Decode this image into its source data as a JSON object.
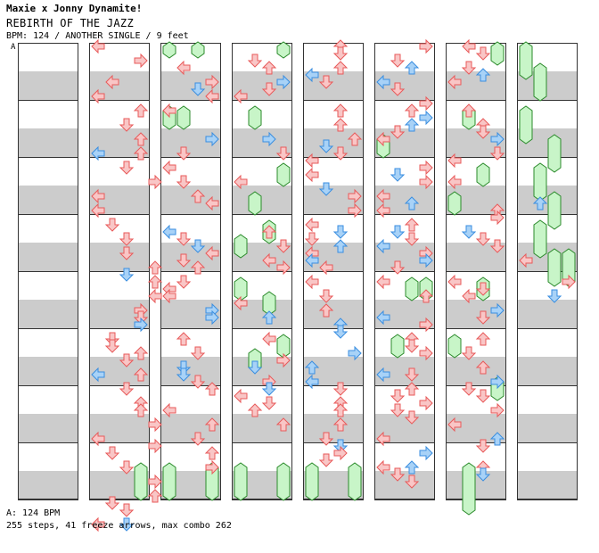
{
  "header": {
    "artist": "Maxie x Jonny Dynamite!",
    "title": "REBIRTH OF THE JAZZ",
    "info": "BPM: 124 / ANOTHER SINGLE / 9 feet",
    "segment_label": "A"
  },
  "footer": {
    "bpm_note": "A: 124 BPM",
    "stats": "255 steps, 41 freeze arrows, max combo 262"
  },
  "colors": {
    "stripe": "#cccccc",
    "border": "#333333",
    "red_fill": "#f9c6c6",
    "red_stroke": "#e85a5a",
    "blue_fill": "#a8d2f7",
    "blue_stroke": "#3a8ee0",
    "freeze_fill": "#c8f5c8",
    "freeze_stroke": "#2b8a2b"
  },
  "arrows": [
    [],
    [
      [
        0,
        0,
        "L",
        "red"
      ],
      [
        3,
        2,
        "R",
        "red"
      ],
      [
        1,
        5,
        "L",
        "red"
      ],
      [
        0,
        7,
        "L",
        "red"
      ],
      [
        3,
        9,
        "U",
        "red"
      ],
      [
        2,
        11,
        "D",
        "red"
      ],
      [
        3,
        13,
        "U",
        "red"
      ],
      [
        0,
        15,
        "L",
        "blue"
      ],
      [
        3,
        15,
        "U",
        "red"
      ],
      [
        2,
        17,
        "D",
        "red"
      ],
      [
        4,
        19,
        "R",
        "red"
      ],
      [
        0,
        21,
        "L",
        "red"
      ],
      [
        0,
        23,
        "L",
        "red"
      ],
      [
        1,
        25,
        "D",
        "red"
      ],
      [
        2,
        27,
        "D",
        "red"
      ],
      [
        2,
        29,
        "D",
        "red"
      ],
      [
        4,
        31,
        "U",
        "red"
      ],
      [
        2,
        32,
        "D",
        "blue"
      ],
      [
        4,
        33,
        "U",
        "red"
      ],
      [
        4,
        35,
        "L",
        "red"
      ],
      [
        3,
        37,
        "R",
        "red"
      ],
      [
        3,
        38,
        "D",
        "red"
      ],
      [
        3,
        39,
        "R",
        "blue"
      ],
      [
        1,
        41,
        "D",
        "red"
      ],
      [
        1,
        42,
        "D",
        "red"
      ],
      [
        3,
        43,
        "U",
        "red"
      ],
      [
        2,
        44,
        "D",
        "red"
      ],
      [
        0,
        46,
        "L",
        "blue"
      ],
      [
        3,
        46,
        "U",
        "red"
      ],
      [
        2,
        48,
        "D",
        "red"
      ],
      [
        3,
        50,
        "U",
        "red"
      ],
      [
        3,
        51,
        "U",
        "red"
      ],
      [
        4,
        53,
        "R",
        "red"
      ],
      [
        0,
        55,
        "L",
        "red"
      ],
      [
        4,
        56,
        "R",
        "red"
      ],
      [
        1,
        57,
        "D",
        "red"
      ],
      [
        2,
        59,
        "D",
        "red"
      ],
      [
        4,
        61,
        "R",
        "red"
      ],
      [
        4,
        63,
        "U",
        "red"
      ],
      [
        1,
        64,
        "D",
        "red"
      ],
      [
        2,
        65,
        "D",
        "red"
      ],
      [
        0,
        67,
        "L",
        "red"
      ],
      [
        2,
        67,
        "D",
        "blue"
      ]
    ],
    [
      [
        1,
        3,
        "L",
        "red"
      ],
      [
        3,
        5,
        "R",
        "red"
      ],
      [
        2,
        6,
        "D",
        "blue"
      ],
      [
        3,
        7,
        "L",
        "red"
      ],
      [
        0,
        9,
        "L",
        "red"
      ],
      [
        3,
        13,
        "R",
        "blue"
      ],
      [
        1,
        15,
        "D",
        "red"
      ],
      [
        0,
        17,
        "L",
        "red"
      ],
      [
        1,
        19,
        "D",
        "red"
      ],
      [
        2,
        21,
        "U",
        "red"
      ],
      [
        3,
        22,
        "L",
        "red"
      ],
      [
        0,
        26,
        "L",
        "blue"
      ],
      [
        1,
        27,
        "D",
        "red"
      ],
      [
        2,
        28,
        "D",
        "blue"
      ],
      [
        3,
        29,
        "L",
        "red"
      ],
      [
        1,
        30,
        "D",
        "red"
      ],
      [
        2,
        31,
        "U",
        "red"
      ],
      [
        1,
        33,
        "D",
        "red"
      ],
      [
        0,
        34,
        "L",
        "red"
      ],
      [
        0,
        35,
        "L",
        "red"
      ],
      [
        3,
        37,
        "R",
        "blue"
      ],
      [
        3,
        38,
        "R",
        "blue"
      ],
      [
        1,
        41,
        "U",
        "red"
      ],
      [
        2,
        43,
        "D",
        "red"
      ],
      [
        1,
        45,
        "D",
        "blue"
      ],
      [
        1,
        46,
        "D",
        "blue"
      ],
      [
        2,
        47,
        "D",
        "red"
      ],
      [
        3,
        48,
        "U",
        "red"
      ],
      [
        0,
        51,
        "L",
        "red"
      ],
      [
        3,
        53,
        "U",
        "red"
      ],
      [
        2,
        55,
        "D",
        "red"
      ],
      [
        3,
        57,
        "U",
        "red"
      ],
      [
        3,
        59,
        "R",
        "red"
      ]
    ],
    [
      [
        1,
        2,
        "D",
        "red"
      ],
      [
        2,
        3,
        "U",
        "red"
      ],
      [
        3,
        5,
        "R",
        "blue"
      ],
      [
        2,
        6,
        "D",
        "red"
      ],
      [
        0,
        7,
        "L",
        "red"
      ],
      [
        2,
        13,
        "R",
        "blue"
      ],
      [
        3,
        15,
        "D",
        "red"
      ],
      [
        0,
        19,
        "L",
        "red"
      ],
      [
        2,
        26,
        "U",
        "red"
      ],
      [
        3,
        28,
        "D",
        "red"
      ],
      [
        2,
        30,
        "L",
        "red"
      ],
      [
        3,
        31,
        "R",
        "red"
      ],
      [
        0,
        36,
        "L",
        "red"
      ],
      [
        2,
        38,
        "U",
        "blue"
      ],
      [
        2,
        41,
        "L",
        "red"
      ],
      [
        3,
        44,
        "R",
        "red"
      ],
      [
        1,
        45,
        "D",
        "blue"
      ],
      [
        2,
        47,
        "R",
        "red"
      ],
      [
        2,
        48,
        "D",
        "blue"
      ],
      [
        0,
        49,
        "L",
        "red"
      ],
      [
        2,
        50,
        "D",
        "red"
      ],
      [
        1,
        51,
        "U",
        "red"
      ],
      [
        3,
        53,
        "U",
        "red"
      ]
    ],
    [
      [
        2,
        0,
        "U",
        "red"
      ],
      [
        2,
        1,
        "D",
        "red"
      ],
      [
        2,
        3,
        "U",
        "red"
      ],
      [
        0,
        4,
        "L",
        "blue"
      ],
      [
        1,
        5,
        "D",
        "red"
      ],
      [
        2,
        9,
        "U",
        "red"
      ],
      [
        2,
        11,
        "U",
        "red"
      ],
      [
        3,
        13,
        "U",
        "red"
      ],
      [
        1,
        14,
        "D",
        "blue"
      ],
      [
        2,
        15,
        "D",
        "red"
      ],
      [
        0,
        16,
        "L",
        "red"
      ],
      [
        0,
        18,
        "L",
        "red"
      ],
      [
        1,
        20,
        "D",
        "blue"
      ],
      [
        3,
        21,
        "R",
        "red"
      ],
      [
        3,
        23,
        "R",
        "red"
      ],
      [
        0,
        25,
        "L",
        "red"
      ],
      [
        0,
        27,
        "D",
        "red"
      ],
      [
        2,
        26,
        "D",
        "blue"
      ],
      [
        2,
        28,
        "U",
        "blue"
      ],
      [
        0,
        29,
        "L",
        "red"
      ],
      [
        0,
        30,
        "L",
        "blue"
      ],
      [
        1,
        31,
        "L",
        "red"
      ],
      [
        0,
        33,
        "L",
        "red"
      ],
      [
        1,
        35,
        "D",
        "red"
      ],
      [
        1,
        37,
        "U",
        "red"
      ],
      [
        2,
        39,
        "U",
        "blue"
      ],
      [
        2,
        40,
        "D",
        "blue"
      ],
      [
        3,
        43,
        "R",
        "blue"
      ],
      [
        0,
        45,
        "U",
        "blue"
      ],
      [
        0,
        47,
        "L",
        "blue"
      ],
      [
        2,
        48,
        "D",
        "red"
      ],
      [
        2,
        50,
        "U",
        "red"
      ],
      [
        2,
        51,
        "U",
        "red"
      ],
      [
        2,
        53,
        "U",
        "red"
      ],
      [
        1,
        55,
        "D",
        "red"
      ],
      [
        2,
        56,
        "D",
        "blue"
      ],
      [
        2,
        57,
        "R",
        "red"
      ],
      [
        1,
        58,
        "D",
        "red"
      ]
    ],
    [
      [
        3,
        0,
        "R",
        "red"
      ],
      [
        1,
        2,
        "D",
        "red"
      ],
      [
        2,
        3,
        "U",
        "blue"
      ],
      [
        0,
        5,
        "L",
        "blue"
      ],
      [
        1,
        6,
        "D",
        "red"
      ],
      [
        3,
        8,
        "R",
        "red"
      ],
      [
        2,
        9,
        "U",
        "red"
      ],
      [
        3,
        10,
        "R",
        "blue"
      ],
      [
        2,
        11,
        "U",
        "blue"
      ],
      [
        1,
        12,
        "D",
        "red"
      ],
      [
        0,
        13,
        "L",
        "red"
      ],
      [
        3,
        17,
        "R",
        "red"
      ],
      [
        1,
        18,
        "D",
        "blue"
      ],
      [
        3,
        19,
        "R",
        "red"
      ],
      [
        0,
        21,
        "L",
        "red"
      ],
      [
        2,
        22,
        "U",
        "blue"
      ],
      [
        0,
        23,
        "L",
        "red"
      ],
      [
        2,
        25,
        "U",
        "red"
      ],
      [
        1,
        26,
        "D",
        "blue"
      ],
      [
        2,
        27,
        "D",
        "red"
      ],
      [
        0,
        28,
        "L",
        "blue"
      ],
      [
        3,
        29,
        "R",
        "red"
      ],
      [
        3,
        30,
        "R",
        "blue"
      ],
      [
        1,
        31,
        "D",
        "red"
      ],
      [
        0,
        33,
        "L",
        "red"
      ],
      [
        3,
        35,
        "U",
        "red"
      ],
      [
        0,
        38,
        "L",
        "blue"
      ],
      [
        3,
        39,
        "R",
        "red"
      ],
      [
        2,
        41,
        "U",
        "red"
      ],
      [
        2,
        42,
        "D",
        "red"
      ],
      [
        3,
        43,
        "R",
        "red"
      ],
      [
        0,
        46,
        "L",
        "blue"
      ],
      [
        2,
        46,
        "D",
        "red"
      ],
      [
        2,
        48,
        "U",
        "red"
      ],
      [
        1,
        49,
        "D",
        "red"
      ],
      [
        3,
        50,
        "R",
        "red"
      ],
      [
        1,
        51,
        "D",
        "red"
      ],
      [
        2,
        52,
        "D",
        "red"
      ],
      [
        0,
        55,
        "L",
        "red"
      ],
      [
        3,
        57,
        "R",
        "blue"
      ],
      [
        0,
        59,
        "L",
        "red"
      ],
      [
        2,
        59,
        "U",
        "blue"
      ],
      [
        1,
        60,
        "D",
        "red"
      ],
      [
        2,
        61,
        "D",
        "red"
      ]
    ],
    [
      [
        1,
        0,
        "L",
        "red"
      ],
      [
        2,
        1,
        "D",
        "red"
      ],
      [
        1,
        3,
        "D",
        "red"
      ],
      [
        2,
        4,
        "U",
        "blue"
      ],
      [
        0,
        5,
        "L",
        "red"
      ],
      [
        1,
        9,
        "U",
        "red"
      ],
      [
        2,
        11,
        "U",
        "red"
      ],
      [
        2,
        12,
        "D",
        "red"
      ],
      [
        3,
        13,
        "R",
        "blue"
      ],
      [
        3,
        15,
        "D",
        "red"
      ],
      [
        0,
        16,
        "L",
        "red"
      ],
      [
        0,
        19,
        "L",
        "red"
      ],
      [
        3,
        23,
        "U",
        "red"
      ],
      [
        3,
        24,
        "R",
        "red"
      ],
      [
        1,
        26,
        "D",
        "blue"
      ],
      [
        2,
        27,
        "D",
        "red"
      ],
      [
        3,
        28,
        "D",
        "red"
      ],
      [
        0,
        33,
        "L",
        "red"
      ],
      [
        2,
        34,
        "D",
        "red"
      ],
      [
        1,
        35,
        "L",
        "red"
      ],
      [
        3,
        37,
        "R",
        "blue"
      ],
      [
        2,
        38,
        "D",
        "red"
      ],
      [
        2,
        41,
        "U",
        "red"
      ],
      [
        1,
        43,
        "D",
        "red"
      ],
      [
        2,
        45,
        "U",
        "red"
      ],
      [
        3,
        47,
        "R",
        "blue"
      ],
      [
        1,
        48,
        "D",
        "red"
      ],
      [
        2,
        49,
        "D",
        "red"
      ],
      [
        3,
        51,
        "R",
        "red"
      ],
      [
        0,
        53,
        "L",
        "red"
      ],
      [
        3,
        55,
        "U",
        "blue"
      ],
      [
        2,
        56,
        "D",
        "red"
      ],
      [
        2,
        59,
        "U",
        "red"
      ],
      [
        2,
        60,
        "D",
        "blue"
      ]
    ],
    [
      [
        1,
        22,
        "U",
        "blue"
      ],
      [
        0,
        30,
        "L",
        "red"
      ],
      [
        3,
        33,
        "R",
        "red"
      ],
      [
        2,
        35,
        "D",
        "blue"
      ]
    ]
  ],
  "freezes": [
    [],
    [
      [
        3,
        59,
        63
      ]
    ],
    [
      [
        0,
        0,
        1
      ],
      [
        2,
        0,
        1
      ],
      [
        0,
        9,
        11
      ],
      [
        1,
        9,
        11
      ],
      [
        0,
        59,
        63
      ],
      [
        3,
        59,
        63
      ]
    ],
    [
      [
        3,
        0,
        1
      ],
      [
        1,
        9,
        11
      ],
      [
        3,
        17,
        19
      ],
      [
        1,
        21,
        23
      ],
      [
        2,
        25,
        27
      ],
      [
        0,
        27,
        29
      ],
      [
        0,
        33,
        35
      ],
      [
        2,
        35,
        37
      ],
      [
        1,
        43,
        45
      ],
      [
        3,
        41,
        43
      ],
      [
        0,
        59,
        63
      ],
      [
        3,
        59,
        63
      ]
    ],
    [
      [
        0,
        59,
        63
      ],
      [
        3,
        59,
        63
      ]
    ],
    [
      [
        0,
        13,
        15
      ],
      [
        2,
        33,
        35
      ],
      [
        1,
        41,
        43
      ],
      [
        3,
        33,
        35
      ]
    ],
    [
      [
        3,
        0,
        2
      ],
      [
        1,
        9,
        11
      ],
      [
        2,
        17,
        19
      ],
      [
        0,
        21,
        23
      ],
      [
        2,
        33,
        35
      ],
      [
        0,
        41,
        43
      ],
      [
        3,
        47,
        49
      ],
      [
        1,
        59,
        65
      ]
    ],
    [
      [
        0,
        0,
        4
      ],
      [
        1,
        3,
        7
      ],
      [
        0,
        9,
        13
      ],
      [
        2,
        13,
        17
      ],
      [
        1,
        17,
        21
      ],
      [
        2,
        21,
        25
      ],
      [
        1,
        25,
        29
      ],
      [
        2,
        29,
        33
      ],
      [
        3,
        29,
        33
      ]
    ]
  ]
}
